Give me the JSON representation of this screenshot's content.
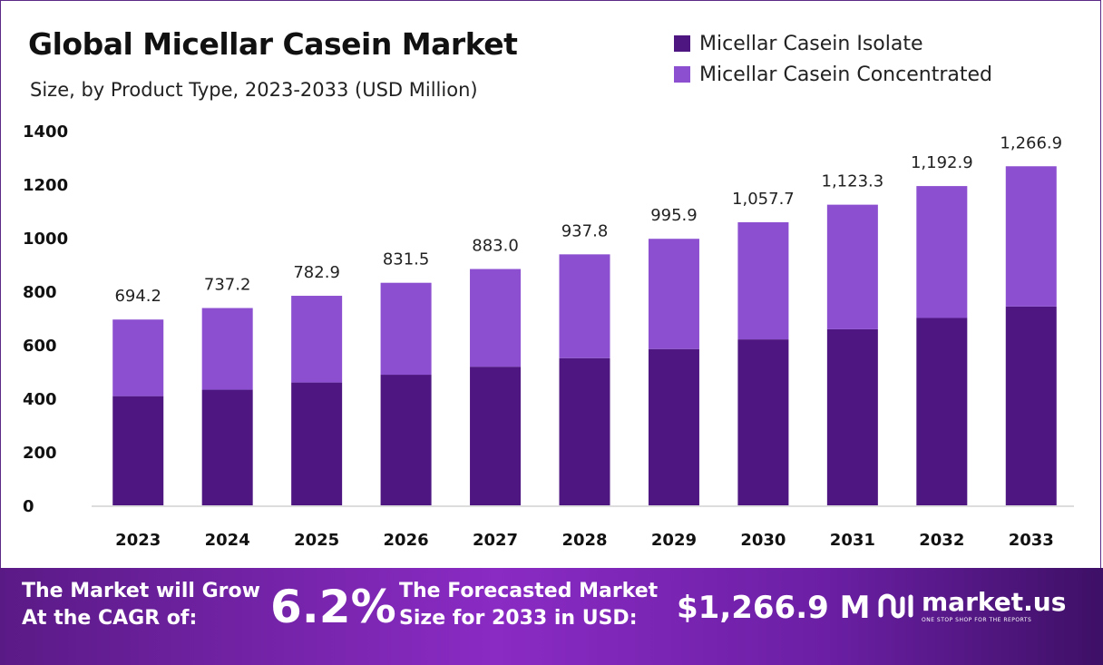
{
  "header": {
    "title": "Global Micellar Casein Market",
    "subtitle": "Size, by Product Type, 2023-2033 (USD Million)"
  },
  "colors": {
    "isolate": "#4e1680",
    "concentrated": "#8b4fd0",
    "axis": "#bbbbbb"
  },
  "chart_data": {
    "type": "bar",
    "stacked": true,
    "title": "Global Micellar Casein Market",
    "subtitle": "Size, by Product Type, 2023-2033 (USD Million)",
    "xlabel": "",
    "ylabel": "",
    "ylim": [
      0,
      1400
    ],
    "yticks": [
      0,
      200,
      400,
      600,
      800,
      1000,
      1200,
      1400
    ],
    "grid": false,
    "legend_position": "top-right",
    "categories": [
      "2023",
      "2024",
      "2025",
      "2026",
      "2027",
      "2028",
      "2029",
      "2030",
      "2031",
      "2032",
      "2033"
    ],
    "series": [
      {
        "name": "Micellar Casein Isolate",
        "values": [
          408,
          432,
          459,
          488,
          518,
          550,
          584,
          620,
          658,
          700,
          743
        ]
      },
      {
        "name": "Micellar Casein Concentrated",
        "values": [
          286.2,
          305.2,
          323.9,
          343.5,
          365.0,
          387.8,
          411.9,
          437.7,
          465.3,
          492.9,
          523.9
        ]
      }
    ],
    "totals": [
      "694.2",
      "737.2",
      "782.9",
      "831.5",
      "883.0",
      "937.8",
      "995.9",
      "1,057.7",
      "1,123.3",
      "1,192.9",
      "1,266.9"
    ]
  },
  "footer": {
    "cagr_text_line1": "The Market will Grow",
    "cagr_text_line2": "At the CAGR of:",
    "cagr_value": "6.2%",
    "forecast_text_line1": "The Forecasted Market",
    "forecast_text_line2": "Size for 2033 in USD:",
    "forecast_value": "$1,266.9 M",
    "brand_name": "market.us",
    "brand_tagline": "ONE STOP SHOP FOR THE REPORTS",
    "brand_icon": "market-us-logo-icon"
  }
}
